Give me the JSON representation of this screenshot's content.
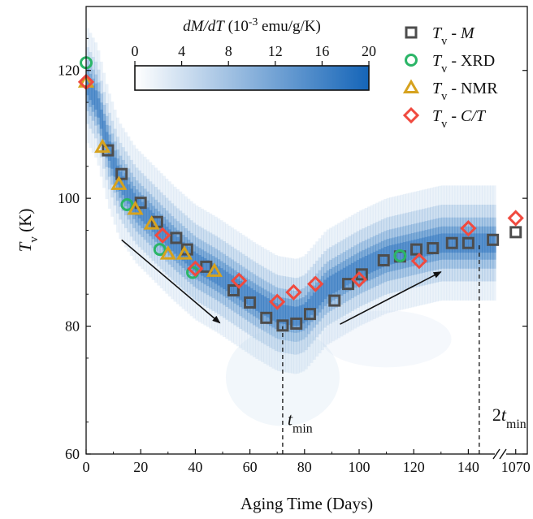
{
  "chart_data": {
    "type": "scatter",
    "xlabel": "Aging Time (Days)",
    "ylabel": {
      "main": "T",
      "sub": "v",
      "unit": " (K)"
    },
    "ylim": [
      60,
      130
    ],
    "yticks": [
      60,
      80,
      100,
      120
    ],
    "xlim": [
      0,
      150
    ],
    "xticks": [
      0,
      20,
      40,
      60,
      80,
      100,
      120,
      140
    ],
    "x_break_tick": 1070,
    "x_break_position": 152,
    "grid": false,
    "legend_position": "top-right",
    "heatmap": {
      "colorbar_title": "dM/dT (10-3 emu/g/K)",
      "colorbar_title_parts": {
        "a": "dM/dT",
        "b": " (10",
        "sup": "-3",
        "c": " emu/g/K)"
      },
      "colorbar_ticks": [
        0,
        4,
        8,
        12,
        16,
        20
      ],
      "colormap": [
        "#ffffff",
        "#1565b8"
      ],
      "ridge": [
        [
          0,
          118
        ],
        [
          4,
          115
        ],
        [
          8,
          108
        ],
        [
          12,
          103
        ],
        [
          18,
          99
        ],
        [
          25,
          96
        ],
        [
          32,
          93
        ],
        [
          40,
          90
        ],
        [
          48,
          88
        ],
        [
          55,
          86
        ],
        [
          62,
          84
        ],
        [
          70,
          82
        ],
        [
          77,
          81.5
        ],
        [
          80,
          82
        ],
        [
          84,
          84
        ],
        [
          88,
          86
        ],
        [
          92,
          87
        ],
        [
          96,
          88
        ],
        [
          100,
          89
        ],
        [
          105,
          90
        ],
        [
          110,
          91
        ],
        [
          120,
          92
        ],
        [
          130,
          93
        ],
        [
          140,
          93
        ],
        [
          150,
          93
        ]
      ]
    },
    "series": [
      {
        "name": "Tv - M",
        "name_parts": {
          "main": "T",
          "sub": "v",
          "rest": " - ",
          "italic": "M"
        },
        "marker": "square",
        "color": "#4d4d4d",
        "x": [
          8,
          13,
          20,
          26,
          33,
          37,
          44,
          54,
          60,
          66,
          72,
          77,
          82,
          91,
          96,
          101,
          109,
          115,
          121,
          127,
          134,
          140,
          149,
          152
        ],
        "y": [
          107.5,
          103.8,
          99.3,
          96.3,
          93.8,
          92,
          89.3,
          85.6,
          83.7,
          81.3,
          80.1,
          80.4,
          81.9,
          84,
          86.6,
          88.1,
          90.3,
          90.9,
          92,
          92.2,
          93,
          93,
          93.5,
          94.7
        ]
      },
      {
        "name": "Tv - XRD",
        "name_parts": {
          "main": "T",
          "sub": "v",
          "rest": " - XRD",
          "italic": ""
        },
        "marker": "circle",
        "color": "#2bb567",
        "x": [
          0,
          15,
          27,
          39,
          115
        ],
        "y": [
          121.2,
          99,
          92,
          88.4,
          91
        ]
      },
      {
        "name": "Tv - NMR",
        "name_parts": {
          "main": "T",
          "sub": "v",
          "rest": " - NMR",
          "italic": ""
        },
        "marker": "triangle",
        "color": "#d6a21e",
        "x": [
          0,
          6,
          12,
          18,
          24,
          30,
          36,
          47
        ],
        "y": [
          118.2,
          108,
          102.2,
          98.3,
          96,
          91.3,
          91.3,
          88.6
        ]
      },
      {
        "name": "Tv - C/T",
        "name_parts": {
          "main": "T",
          "sub": "v",
          "rest": " - ",
          "italic": "C/T"
        },
        "marker": "diamond",
        "color": "#f04a3f",
        "x": [
          0,
          28,
          40,
          56,
          70,
          76,
          84,
          100,
          122,
          140,
          152
        ],
        "y": [
          118.2,
          94.2,
          89,
          87.1,
          83.8,
          85.3,
          86.6,
          87.3,
          90.2,
          95.3,
          96.9
        ]
      }
    ],
    "annotations": [
      {
        "type": "arrow",
        "from": [
          13,
          93.5
        ],
        "to": [
          49,
          80.5
        ]
      },
      {
        "type": "arrow",
        "from": [
          93,
          80.3
        ],
        "to": [
          130,
          88.5
        ]
      },
      {
        "type": "vline",
        "x": 72,
        "y_from": 60,
        "y_to": 80
      },
      {
        "type": "vline",
        "x": 144,
        "y_from": 60,
        "y_to": 93
      },
      {
        "type": "label",
        "text": "t",
        "sub": "min",
        "x": 72,
        "y": 64.5,
        "prefix": ""
      },
      {
        "type": "label",
        "text": "t",
        "sub": "min",
        "x": 147,
        "y": 65.2,
        "prefix": "2"
      }
    ]
  }
}
